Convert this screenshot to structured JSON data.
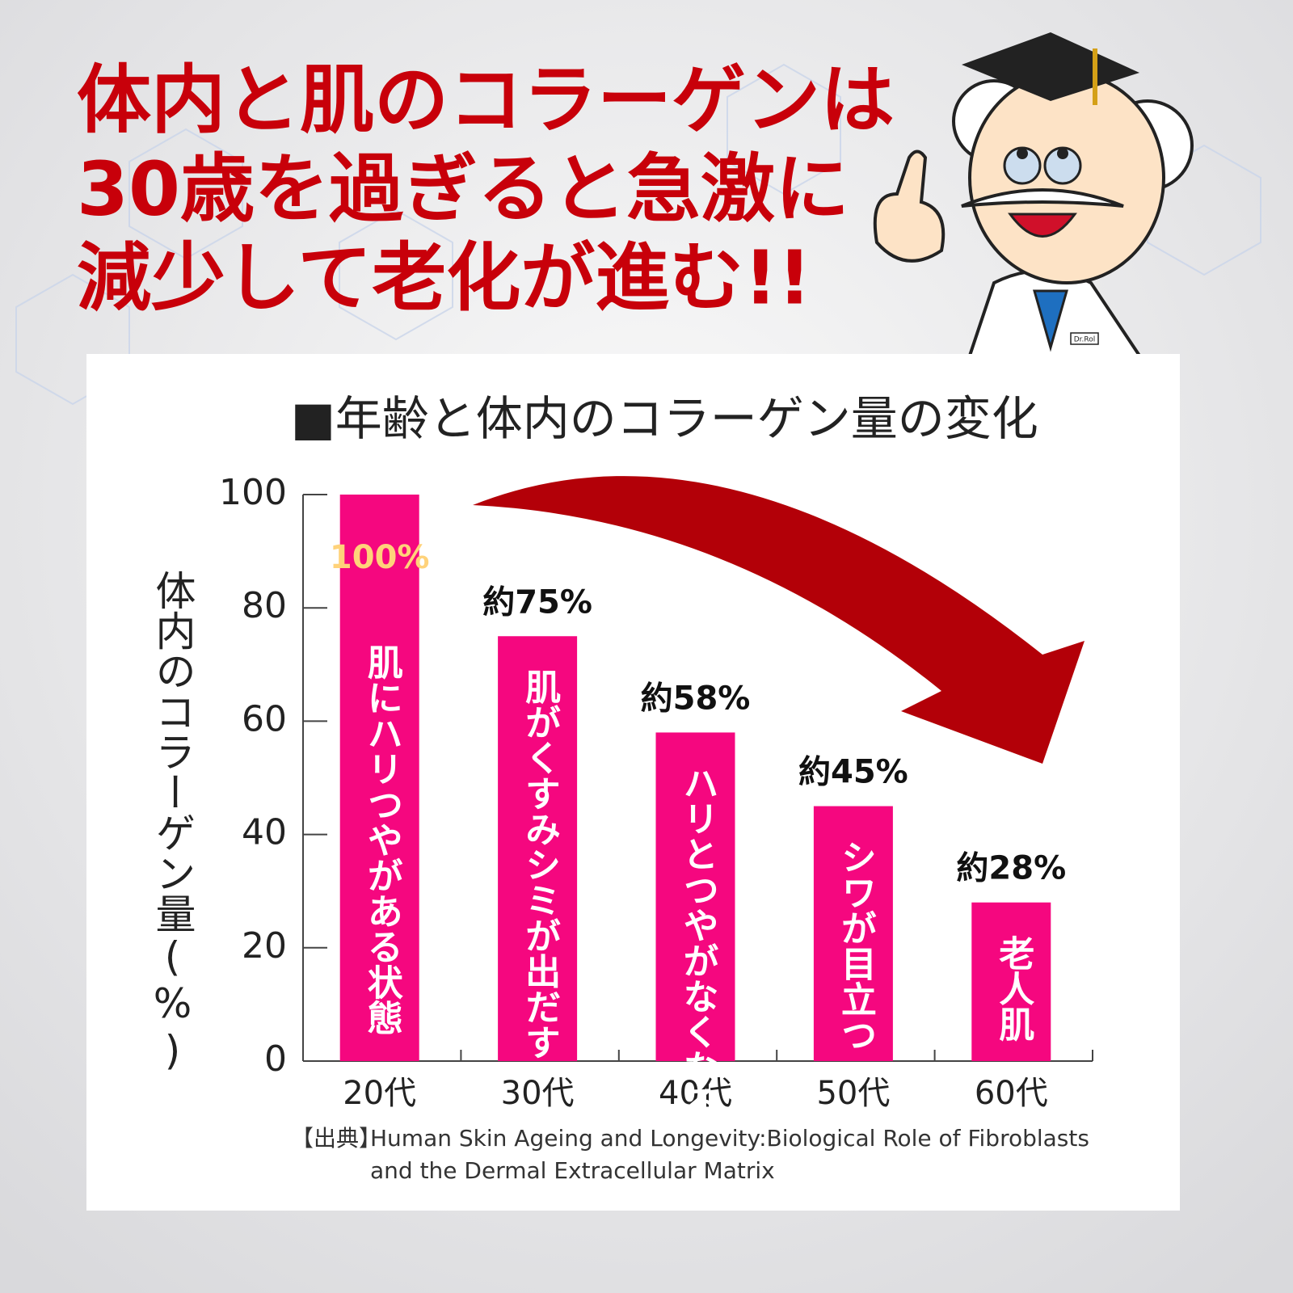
{
  "headline": [
    "体内と肌のコラーゲンは",
    "30歳を過ぎると急激に",
    "減少して老化が進む!!"
  ],
  "character_badge": "Dr.Rol",
  "chart_data": {
    "type": "bar",
    "title": "■年齢と体内のコラーゲン量の変化",
    "y_label": "体内のコラーゲン量(%)",
    "categories": [
      "20代",
      "30代",
      "40代",
      "50代",
      "60代"
    ],
    "values": [
      100,
      75,
      58,
      45,
      28
    ],
    "value_labels": [
      "100%",
      "約75%",
      "約58%",
      "約45%",
      "約28%"
    ],
    "annotations": [
      "肌にハリつやがある状態",
      "肌がくすみシミが出だす",
      "ハリとつやがなくなる",
      "シワが目立つ",
      "老人肌"
    ],
    "color": "#f5077f",
    "ylim": [
      0,
      100
    ],
    "yticks": [
      0,
      20,
      40,
      60,
      80,
      100
    ],
    "source": {
      "prefix": "【出典】",
      "lines": [
        "Human Skin Ageing and Longevity:Biological Role of Fibroblasts",
        "and the Dermal Extracellular Matrix"
      ]
    }
  }
}
